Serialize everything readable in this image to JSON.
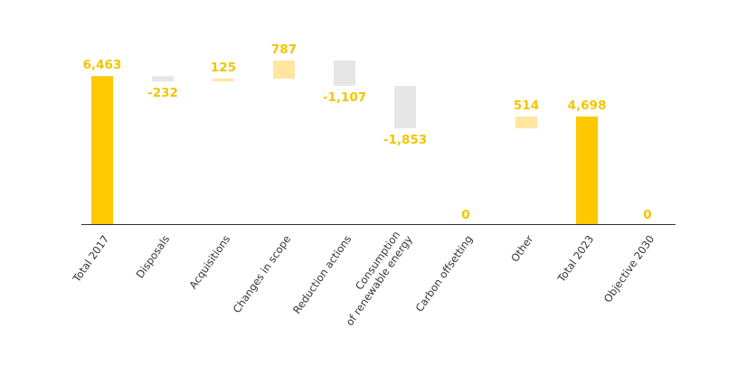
{
  "chart_data": {
    "type": "waterfall",
    "categories": [
      "Total 2017",
      "Disposals",
      "Acquisitions",
      "Changes in scope",
      "Reduction actions",
      "Consumption\nof renewable energy",
      "Carbon offsetting",
      "Other",
      "Total 2023",
      "Objective 2030"
    ],
    "values": [
      6463,
      -232,
      125,
      787,
      -1107,
      -1853,
      0,
      514,
      4698,
      0
    ],
    "value_labels": [
      "6,463",
      "-232",
      "125",
      "787",
      "-1,107",
      "-1,853",
      "0",
      "514",
      "4,698",
      "0"
    ],
    "measure": [
      "absolute",
      "relative",
      "relative",
      "relative",
      "relative",
      "relative",
      "relative",
      "relative",
      "absolute",
      "absolute"
    ],
    "colors": {
      "absolute": "#ffc800",
      "increase": "#ffe6a0",
      "decrease": "#e6e6e6"
    }
  }
}
